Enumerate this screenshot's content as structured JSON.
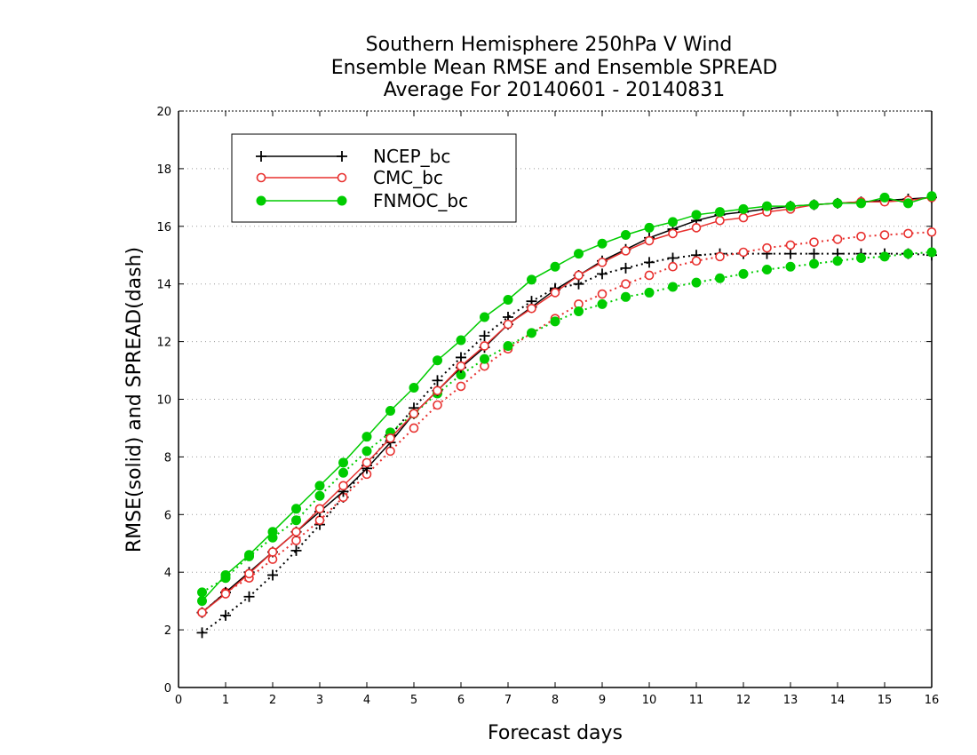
{
  "chart_data": {
    "type": "line",
    "title": [
      "Southern Hemisphere 250hPa V Wind",
      "Ensemble Mean RMSE and Ensemble SPREAD",
      "Average For 20140601 - 20140831"
    ],
    "xlabel": "Forecast days",
    "ylabel": "RMSE(solid) and SPREAD(dash)",
    "xlim": [
      0,
      16
    ],
    "ylim": [
      0,
      20
    ],
    "xticks": [
      "0",
      "1",
      "2",
      "3",
      "4",
      "5",
      "6",
      "7",
      "8",
      "9",
      "10",
      "11",
      "12",
      "13",
      "14",
      "15",
      "16"
    ],
    "yticks": [
      "0",
      "2",
      "4",
      "6",
      "8",
      "10",
      "12",
      "14",
      "16",
      "18",
      "20"
    ],
    "grid": true,
    "legend_position": "top-left",
    "x": [
      0.5,
      1,
      1.5,
      2,
      2.5,
      3,
      3.5,
      4,
      4.5,
      5,
      5.5,
      6,
      6.5,
      7,
      7.5,
      8,
      8.5,
      9,
      9.5,
      10,
      10.5,
      11,
      11.5,
      12,
      12.5,
      13,
      13.5,
      14,
      14.5,
      15,
      15.5,
      16
    ],
    "series": [
      {
        "name": "NCEP_bc",
        "color": "#000000",
        "marker": "plus",
        "rmse": [
          2.6,
          3.3,
          4.0,
          4.7,
          5.4,
          6.1,
          6.8,
          7.6,
          8.5,
          9.5,
          10.3,
          11.1,
          11.8,
          12.6,
          13.2,
          13.8,
          14.3,
          14.8,
          15.2,
          15.6,
          15.9,
          16.2,
          16.4,
          16.5,
          16.6,
          16.7,
          16.75,
          16.8,
          16.85,
          16.9,
          16.95,
          17.0
        ],
        "spread": [
          1.9,
          2.5,
          3.15,
          3.9,
          4.75,
          5.65,
          6.6,
          7.7,
          8.75,
          9.7,
          10.65,
          11.45,
          12.2,
          12.85,
          13.4,
          13.85,
          14.0,
          14.35,
          14.55,
          14.75,
          14.9,
          15.0,
          15.05,
          15.05,
          15.05,
          15.05,
          15.05,
          15.05,
          15.05,
          15.05,
          15.05,
          15.0
        ]
      },
      {
        "name": "CMC_bc",
        "color": "#e8312f",
        "marker": "open-circle",
        "rmse": [
          2.6,
          3.25,
          3.95,
          4.7,
          5.4,
          6.2,
          7.0,
          7.8,
          8.65,
          9.5,
          10.3,
          11.15,
          11.85,
          12.6,
          13.15,
          13.7,
          14.3,
          14.75,
          15.15,
          15.5,
          15.75,
          15.95,
          16.2,
          16.3,
          16.5,
          16.6,
          16.75,
          16.8,
          16.85,
          16.85,
          16.9,
          17.0
        ],
        "spread": [
          2.6,
          3.3,
          3.8,
          4.45,
          5.1,
          5.8,
          6.6,
          7.4,
          8.2,
          9.0,
          9.8,
          10.45,
          11.15,
          11.75,
          12.3,
          12.8,
          13.3,
          13.65,
          14.0,
          14.3,
          14.6,
          14.8,
          14.95,
          15.1,
          15.25,
          15.35,
          15.45,
          15.55,
          15.65,
          15.7,
          15.75,
          15.8
        ]
      },
      {
        "name": "FNMOC_bc",
        "color": "#00cc00",
        "marker": "filled-circle",
        "rmse": [
          3.0,
          3.9,
          4.6,
          5.4,
          6.2,
          7.0,
          7.8,
          8.7,
          9.6,
          10.4,
          11.35,
          12.05,
          12.85,
          13.45,
          14.15,
          14.6,
          15.05,
          15.4,
          15.7,
          15.95,
          16.15,
          16.4,
          16.5,
          16.6,
          16.7,
          16.7,
          16.75,
          16.8,
          16.8,
          17.0,
          16.8,
          17.05
        ],
        "spread": [
          3.3,
          3.8,
          4.55,
          5.2,
          5.8,
          6.65,
          7.45,
          8.2,
          8.85,
          9.5,
          10.2,
          10.85,
          11.4,
          11.85,
          12.3,
          12.7,
          13.05,
          13.3,
          13.55,
          13.7,
          13.9,
          14.05,
          14.2,
          14.35,
          14.5,
          14.6,
          14.7,
          14.8,
          14.9,
          14.95,
          15.05,
          15.1
        ]
      }
    ]
  }
}
